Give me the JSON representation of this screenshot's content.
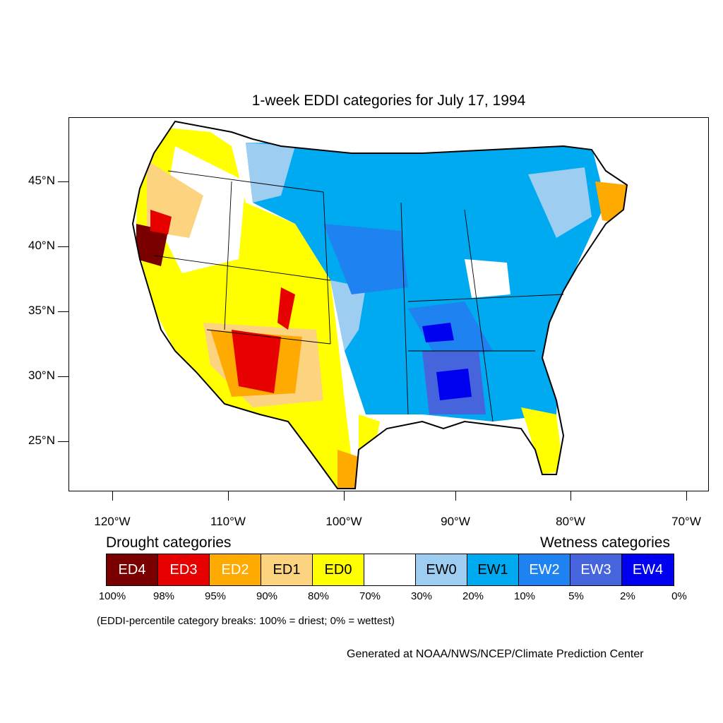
{
  "title": "1-week EDDI categories for July 17, 1994",
  "map": {
    "region": "contiguous United States",
    "lat_labels": [
      "45°N",
      "40°N",
      "35°N",
      "30°N",
      "25°N"
    ],
    "lon_labels": [
      "120°W",
      "110°W",
      "100°W",
      "90°W",
      "80°W",
      "70°W"
    ],
    "lat_values": [
      45,
      40,
      35,
      30,
      25
    ],
    "lon_values": [
      -120,
      -110,
      -100,
      -90,
      -80,
      -70
    ],
    "lat_range": [
      21,
      49.5
    ],
    "lon_range": [
      -124,
      -68.5
    ]
  },
  "legend": {
    "drought_heading": "Drought categories",
    "wetness_heading": "Wetness categories",
    "categories": [
      {
        "label": "ED4",
        "color": "#7a0000",
        "text_color": "#ffffff"
      },
      {
        "label": "ED3",
        "color": "#e60000",
        "text_color": "#ffffff"
      },
      {
        "label": "ED2",
        "color": "#ffaa00",
        "text_color": "#ffffff"
      },
      {
        "label": "ED1",
        "color": "#fcd37f",
        "text_color": "#000000"
      },
      {
        "label": "ED0",
        "color": "#ffff00",
        "text_color": "#000000"
      },
      {
        "label": "",
        "color": "#ffffff",
        "text_color": "#000000"
      },
      {
        "label": "EW0",
        "color": "#9dcdf0",
        "text_color": "#000000"
      },
      {
        "label": "EW1",
        "color": "#00aaf0",
        "text_color": "#000000"
      },
      {
        "label": "EW2",
        "color": "#1e82f0",
        "text_color": "#ffffff"
      },
      {
        "label": "EW3",
        "color": "#4664dc",
        "text_color": "#ffffff"
      },
      {
        "label": "EW4",
        "color": "#0000f0",
        "text_color": "#ffffff"
      }
    ],
    "percent_breaks": [
      "100%",
      "98%",
      "95%",
      "90%",
      "80%",
      "70%",
      "30%",
      "20%",
      "10%",
      "5%",
      "2%",
      "0%"
    ]
  },
  "note": "(EDDI-percentile category breaks: 100% = driest; 0% = wettest)",
  "credit": "Generated at NOAA/NWS/NCEP/Climate Prediction Center"
}
